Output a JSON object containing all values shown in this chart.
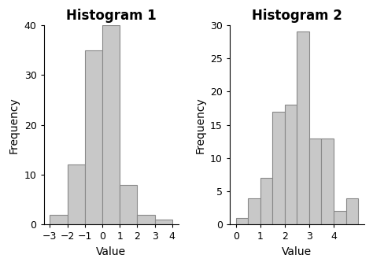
{
  "hist1": {
    "title": "Histogram 1",
    "xlabel": "Value",
    "ylabel": "Frequency",
    "bar_heights": [
      2,
      12,
      35,
      40,
      8,
      2,
      1
    ],
    "bar_edges": [
      -3,
      -2,
      -1,
      0,
      1,
      2,
      3,
      4
    ],
    "ylim": [
      0,
      40
    ],
    "yticks": [
      0,
      10,
      20,
      30,
      40
    ],
    "xticks": [
      -3,
      -2,
      -1,
      0,
      1,
      2,
      3,
      4
    ]
  },
  "hist2": {
    "title": "Histogram 2",
    "xlabel": "Value",
    "ylabel": "Frequency",
    "bar_heights": [
      1,
      4,
      7,
      17,
      18,
      29,
      13,
      13,
      2,
      4
    ],
    "bar_edges": [
      0,
      0.5,
      1,
      1.5,
      2,
      2.5,
      3,
      3.5,
      4,
      4.5,
      5
    ],
    "ylim": [
      0,
      30
    ],
    "yticks": [
      0,
      5,
      10,
      15,
      20,
      25,
      30
    ],
    "xticks": [
      0,
      1,
      2,
      3,
      4
    ]
  },
  "bar_color": "#c8c8c8",
  "bar_edgecolor": "#888888",
  "bg_color": "#ffffff",
  "title_fontsize": 12,
  "label_fontsize": 10,
  "tick_fontsize": 9
}
